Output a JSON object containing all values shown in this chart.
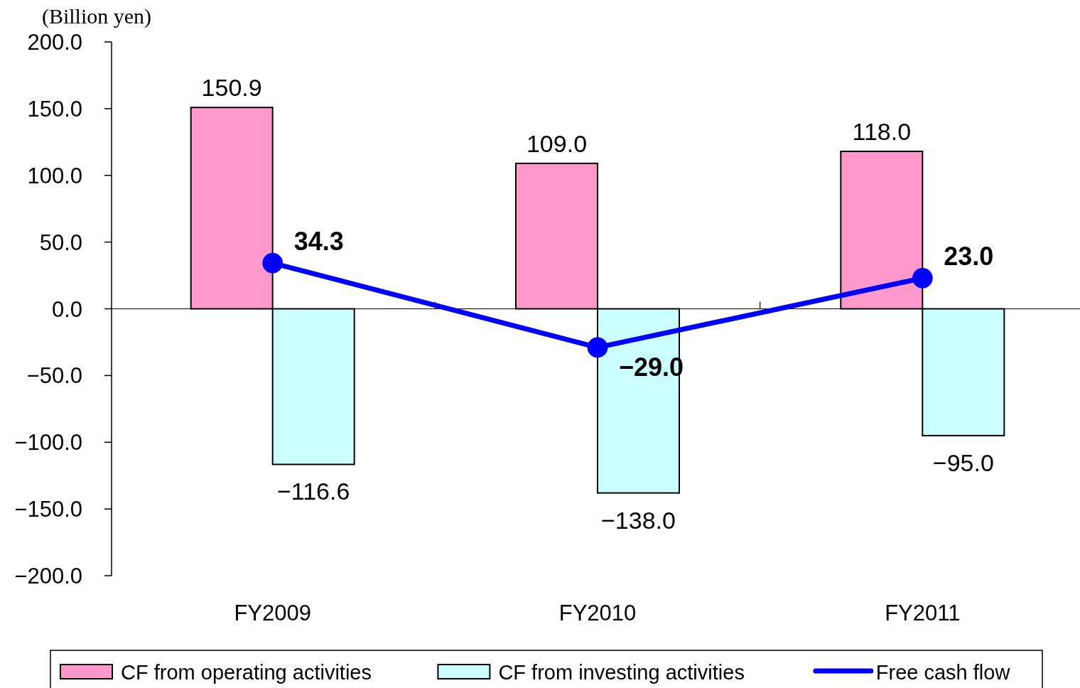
{
  "chart_data": {
    "type": "bar",
    "ylabel": "(Billion yen)",
    "categories": [
      "FY2009",
      "FY2010",
      "FY2011"
    ],
    "series": [
      {
        "name": "CF from operating activities",
        "color": "#ff99cc",
        "values": [
          150.9,
          109.0,
          118.0
        ],
        "value_labels": [
          "150.9",
          "109.0",
          "118.0"
        ]
      },
      {
        "name": "CF from investing activities",
        "color": "#ccffff",
        "values": [
          -116.6,
          -138.0,
          -95.0
        ],
        "value_labels": [
          "−116.6",
          "−138.0",
          "−95.0"
        ]
      },
      {
        "name": "Free cash flow",
        "type": "line",
        "color": "#0000ff",
        "values": [
          34.3,
          -29.0,
          23.0
        ],
        "value_labels": [
          "34.3",
          "−29.0",
          "23.0"
        ]
      }
    ],
    "ylim": [
      -200,
      200
    ],
    "yticks": [
      {
        "value": 200,
        "label": "200.0"
      },
      {
        "value": 150,
        "label": "150.0"
      },
      {
        "value": 100,
        "label": "100.0"
      },
      {
        "value": 50,
        "label": "50.0"
      },
      {
        "value": 0,
        "label": "0.0"
      },
      {
        "value": -50,
        "label": "−50.0"
      },
      {
        "value": -100,
        "label": "−100.0"
      },
      {
        "value": -150,
        "label": "−150.0"
      },
      {
        "value": -200,
        "label": "−200.0"
      }
    ],
    "marker": "circle",
    "legend": "bottom"
  }
}
